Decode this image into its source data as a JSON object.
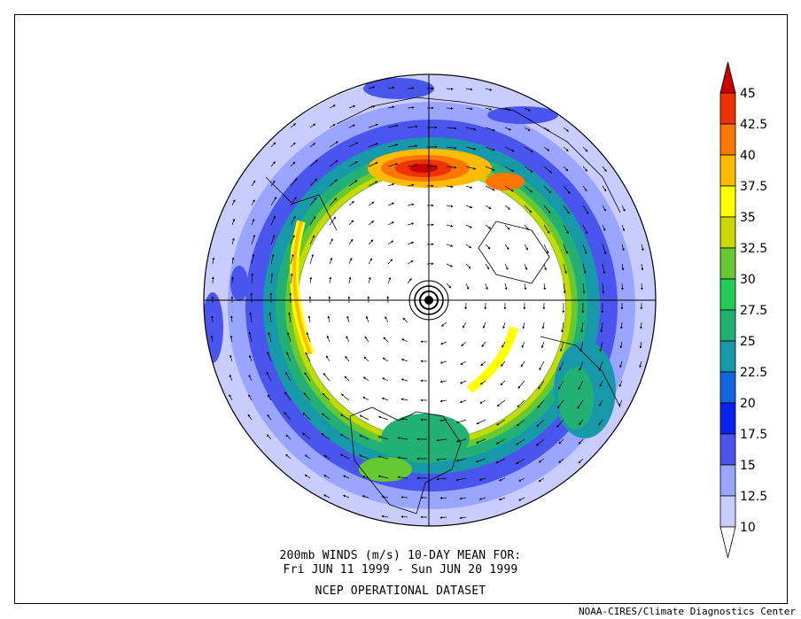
{
  "caption": {
    "line1": "200mb WINDS (m/s)   10-DAY MEAN FOR:",
    "line2": "Fri JUN 11 1999 - Sun JUN 20 1999",
    "line3": "NCEP OPERATIONAL DATASET"
  },
  "credit": "NOAA-CIRES/Climate Diagnostics Center",
  "colorbar": {
    "levels": [
      "45",
      "42.5",
      "40",
      "37.5",
      "35",
      "32.5",
      "30",
      "27.5",
      "25",
      "22.5",
      "20",
      "17.5",
      "15",
      "12.5",
      "10"
    ],
    "colors": [
      "#cc0000",
      "#ee3300",
      "#ff7700",
      "#ffbb00",
      "#ffff00",
      "#c8d800",
      "#66c832",
      "#22cc55",
      "#22b077",
      "#1899aa",
      "#1166dd",
      "#0a22ee",
      "#4a55ee",
      "#9aa5ff",
      "#c8ccff"
    ],
    "bottom_color": "#ffffff"
  },
  "map": {
    "projection": "north-polar-stereographic",
    "field": "200mb wind speed (m/s)",
    "vectors": "wind arrows"
  }
}
